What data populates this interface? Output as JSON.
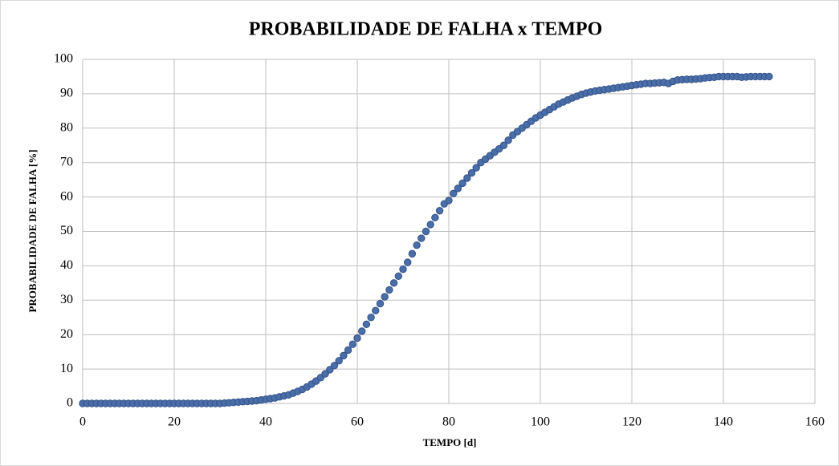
{
  "chart_data": {
    "type": "scatter",
    "title": "PROBABILIDADE  DE  FALHA  x  TEMPO",
    "xlabel": "TEMPO  [d]",
    "ylabel": "PROBABILIDADE  DE FALHA  [%]",
    "color": "#4a6ea8",
    "xlim": [
      0,
      160
    ],
    "xticks": [
      0,
      20,
      40,
      60,
      80,
      100,
      120,
      140,
      160
    ],
    "ylim": [
      0,
      100
    ],
    "yticks": [
      0,
      10,
      20,
      30,
      40,
      50,
      60,
      70,
      80,
      90,
      100
    ],
    "grid": true,
    "x": [
      0,
      1,
      2,
      3,
      4,
      5,
      6,
      7,
      8,
      9,
      10,
      11,
      12,
      13,
      14,
      15,
      16,
      17,
      18,
      19,
      20,
      21,
      22,
      23,
      24,
      25,
      26,
      27,
      28,
      29,
      30,
      31,
      32,
      33,
      34,
      35,
      36,
      37,
      38,
      39,
      40,
      41,
      42,
      43,
      44,
      45,
      46,
      47,
      48,
      49,
      50,
      51,
      52,
      53,
      54,
      55,
      56,
      57,
      58,
      59,
      60,
      61,
      62,
      63,
      64,
      65,
      66,
      67,
      68,
      69,
      70,
      71,
      72,
      73,
      74,
      75,
      76,
      77,
      78,
      79,
      80,
      81,
      82,
      83,
      84,
      85,
      86,
      87,
      88,
      89,
      90,
      91,
      92,
      93,
      94,
      95,
      96,
      97,
      98,
      99,
      100,
      101,
      102,
      103,
      104,
      105,
      106,
      107,
      108,
      109,
      110,
      111,
      112,
      113,
      114,
      115,
      116,
      117,
      118,
      119,
      120,
      121,
      122,
      123,
      124,
      125,
      126,
      127,
      128,
      129,
      130,
      131,
      132,
      133,
      134,
      135,
      136,
      137,
      138,
      139,
      140,
      141,
      142,
      143,
      144,
      145,
      146,
      147,
      148,
      149,
      150
    ],
    "values": [
      0,
      0,
      0,
      0,
      0,
      0,
      0,
      0,
      0,
      0,
      0,
      0,
      0,
      0,
      0,
      0,
      0,
      0,
      0,
      0,
      0,
      0,
      0,
      0,
      0,
      0,
      0,
      0,
      0,
      0,
      0,
      0.1,
      0.2,
      0.3,
      0.4,
      0.5,
      0.6,
      0.7,
      0.8,
      1.0,
      1.2,
      1.4,
      1.6,
      1.9,
      2.2,
      2.5,
      3.0,
      3.5,
      4.1,
      4.8,
      5.6,
      6.5,
      7.5,
      8.6,
      9.8,
      11,
      12.4,
      13.9,
      15.5,
      17.2,
      19,
      21,
      23,
      25,
      27,
      29,
      31,
      33,
      35,
      37,
      39,
      41,
      43.5,
      46,
      48,
      50,
      52,
      54,
      56,
      58,
      59,
      61,
      62.5,
      64,
      65.5,
      67,
      68.5,
      70,
      71,
      72,
      73,
      74,
      75,
      76.5,
      78,
      79,
      80,
      81,
      82,
      83,
      83.8,
      84.6,
      85.4,
      86.2,
      87,
      87.6,
      88.2,
      88.8,
      89.3,
      89.8,
      90.2,
      90.5,
      90.8,
      91,
      91.2,
      91.4,
      91.6,
      91.8,
      92,
      92.2,
      92.4,
      92.6,
      92.8,
      93,
      93,
      93.1,
      93.2,
      93.3,
      93,
      93.6,
      94,
      94.1,
      94.2,
      94.2,
      94.3,
      94.4,
      94.6,
      94.7,
      94.8,
      95,
      95,
      95,
      95,
      95,
      94.8,
      94.9,
      95,
      95,
      95,
      95,
      95
    ]
  }
}
